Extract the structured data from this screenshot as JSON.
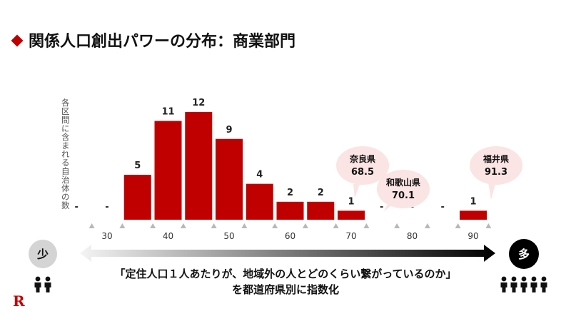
{
  "title": "関係人口創出パワーの分布：商業部門",
  "ylabel": "各区間に含まれる自治体の数",
  "colors": {
    "bar": "#c00000",
    "bubble": "#fbe4e4",
    "accent": "#c00000"
  },
  "chart_data": {
    "type": "bar",
    "title": "",
    "xlabel": "",
    "ylabel": "各区間に含まれる自治体の数",
    "bins": [
      {
        "x": 25,
        "value": 0,
        "label": "-"
      },
      {
        "x": 30,
        "value": 0,
        "label": "-"
      },
      {
        "x": 35,
        "value": 5,
        "label": "5"
      },
      {
        "x": 40,
        "value": 11,
        "label": "11"
      },
      {
        "x": 45,
        "value": 12,
        "label": "12"
      },
      {
        "x": 50,
        "value": 9,
        "label": "9"
      },
      {
        "x": 55,
        "value": 4,
        "label": "4"
      },
      {
        "x": 60,
        "value": 2,
        "label": "2"
      },
      {
        "x": 65,
        "value": 2,
        "label": "2"
      },
      {
        "x": 70,
        "value": 1,
        "label": "1"
      },
      {
        "x": 75,
        "value": 0,
        "label": "-"
      },
      {
        "x": 80,
        "value": 0,
        "label": "-"
      },
      {
        "x": 85,
        "value": 0,
        "label": "-"
      },
      {
        "x": 90,
        "value": 1,
        "label": "1"
      }
    ],
    "ticks": [
      "30",
      "40",
      "50",
      "60",
      "70",
      "80",
      "90"
    ],
    "ylim": [
      0,
      12
    ],
    "grid": false,
    "legend": "none",
    "annotations": [
      {
        "name": "奈良県",
        "value": "68.5"
      },
      {
        "name": "和歌山県",
        "value": "70.1"
      },
      {
        "name": "福井県",
        "value": "91.3"
      }
    ]
  },
  "scale": {
    "low": "少",
    "high": "多"
  },
  "caption": [
    "「定住人口１人あたりが、地域外の人とどのくらい繋がっているのか」",
    "を都道府県別に指数化"
  ],
  "logo": "R"
}
